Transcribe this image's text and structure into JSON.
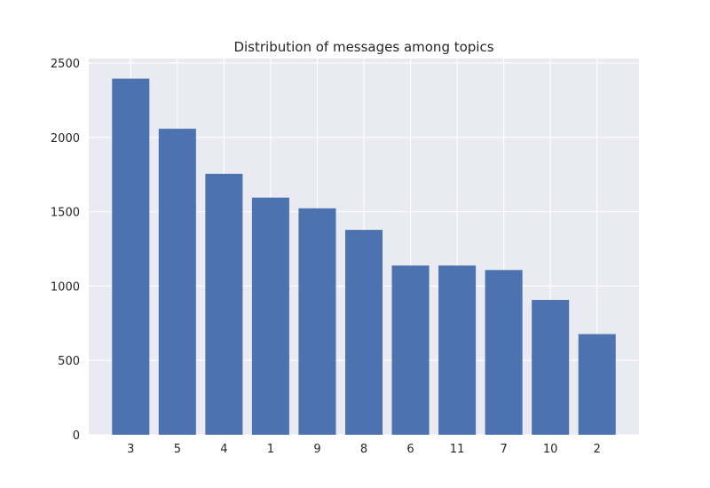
{
  "chart_data": {
    "type": "bar",
    "title": "Distribution of messages among topics",
    "xlabel": "",
    "ylabel": "",
    "categories": [
      "3",
      "5",
      "4",
      "1",
      "9",
      "8",
      "6",
      "11",
      "7",
      "10",
      "2"
    ],
    "values": [
      2395,
      2058,
      1755,
      1595,
      1523,
      1378,
      1138,
      1138,
      1108,
      907,
      677
    ],
    "ylim": [
      0,
      2530
    ],
    "yticks": [
      0,
      500,
      1000,
      1500,
      2000,
      2500
    ],
    "grid": true,
    "legend": "none",
    "colors": {
      "bar": "#4c72b0",
      "plot_background": "#eaeaf2",
      "grid": "#ffffff",
      "text": "#262626"
    }
  }
}
